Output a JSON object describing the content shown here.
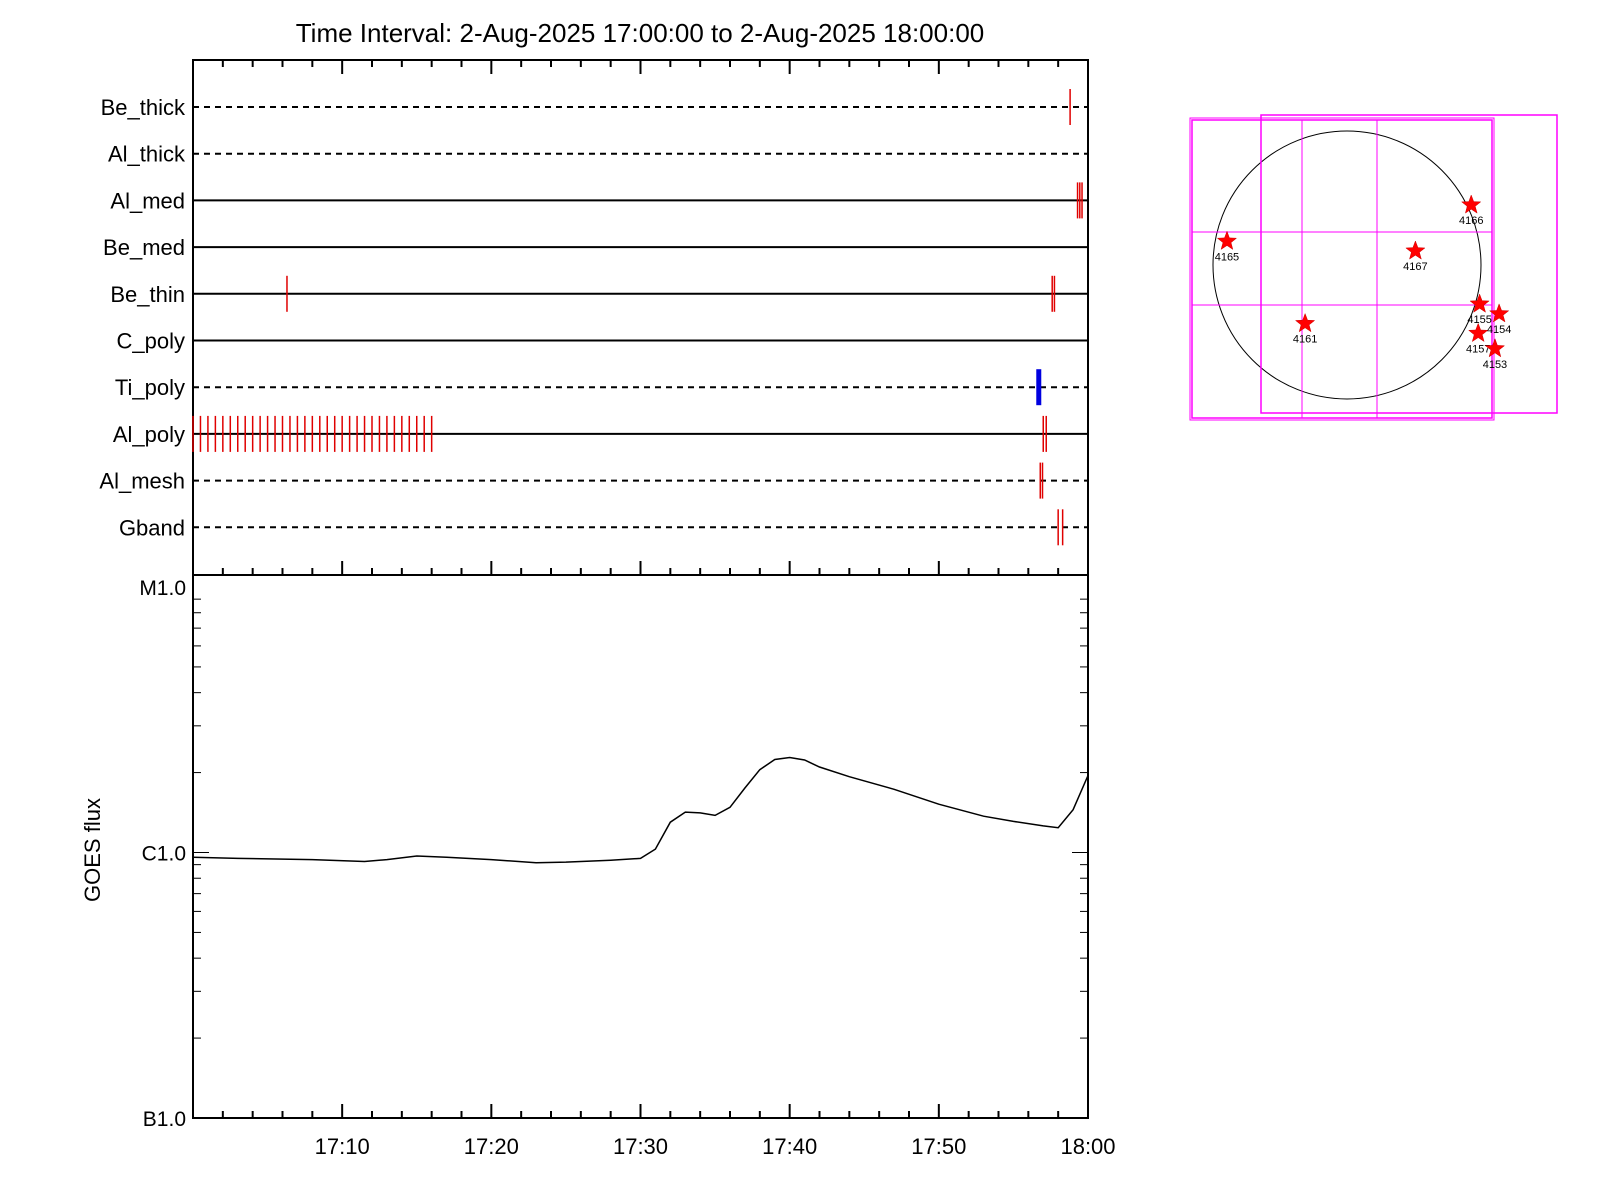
{
  "chart_data": [
    {
      "type": "timeline",
      "title": "Time Interval:  2-Aug-2025 17:00:00 to  2-Aug-2025 18:00:00",
      "x_range_minutes": [
        0,
        60
      ],
      "rows": [
        {
          "label": "Be_thick",
          "line": "dashed",
          "events": [
            {
              "t": [
                58.8
              ],
              "color": "#e00000"
            }
          ]
        },
        {
          "label": "Al_thick",
          "line": "dashed",
          "events": []
        },
        {
          "label": "Al_med",
          "line": "solid",
          "events": [
            {
              "t": [
                59.3,
                59.45,
                59.6
              ],
              "color": "#e00000"
            }
          ]
        },
        {
          "label": "Be_med",
          "line": "solid",
          "events": []
        },
        {
          "label": "Be_thin",
          "line": "solid",
          "events": [
            {
              "t": [
                6.3,
                57.6,
                57.75
              ],
              "color": "#e00000"
            }
          ]
        },
        {
          "label": "C_poly",
          "line": "solid",
          "events": []
        },
        {
          "label": "Ti_poly",
          "line": "dashed",
          "events": [
            {
              "t": [
                56.7
              ],
              "color": "#0000e0",
              "bold": true
            }
          ]
        },
        {
          "label": "Al_poly",
          "line": "solid",
          "events": [
            {
              "t_range": [
                0,
                16.2
              ],
              "step": 0.5,
              "color": "#e00000"
            },
            {
              "t": [
                57.0,
                57.2
              ],
              "color": "#e00000"
            }
          ]
        },
        {
          "label": "Al_mesh",
          "line": "dashed",
          "events": [
            {
              "t": [
                56.8,
                56.95
              ],
              "color": "#e00000"
            }
          ]
        },
        {
          "label": "Gband",
          "line": "dashed",
          "events": [
            {
              "t": [
                58.0,
                58.3
              ],
              "color": "#e00000"
            }
          ]
        }
      ]
    },
    {
      "type": "line",
      "ylabel": "GOES flux",
      "y_scale": "log",
      "y_ticks": [
        {
          "label": "M1.0",
          "value": 1e-05
        },
        {
          "label": "C1.0",
          "value": 1e-06
        },
        {
          "label": "B1.0",
          "value": 1e-07
        }
      ],
      "x_ticks": [
        "17:10",
        "17:20",
        "17:30",
        "17:40",
        "17:50",
        "18:00"
      ],
      "x_range_minutes": [
        0,
        60
      ],
      "series": [
        {
          "color": "#000000",
          "x_minutes": [
            0,
            3,
            8,
            11.5,
            13,
            15,
            17,
            20,
            23,
            25,
            28,
            30,
            31,
            32,
            33,
            34,
            35,
            36,
            37,
            38,
            39,
            40,
            41,
            42,
            44,
            47,
            50,
            53,
            55,
            57,
            58,
            59,
            60
          ],
          "y": [
            9.6e-07,
            9.5e-07,
            9.4e-07,
            9.25e-07,
            9.4e-07,
            9.7e-07,
            9.6e-07,
            9.4e-07,
            9.15e-07,
            9.2e-07,
            9.35e-07,
            9.5e-07,
            1.03e-06,
            1.3e-06,
            1.42e-06,
            1.41e-06,
            1.38e-06,
            1.48e-06,
            1.75e-06,
            2.05e-06,
            2.24e-06,
            2.28e-06,
            2.23e-06,
            2.1e-06,
            1.93e-06,
            1.73e-06,
            1.52e-06,
            1.37e-06,
            1.31e-06,
            1.26e-06,
            1.24e-06,
            1.45e-06,
            1.95e-06
          ]
        }
      ]
    },
    {
      "type": "map",
      "fov_color": "#ff00ff",
      "markers": [
        {
          "label": "4165",
          "x": -860,
          "y": 170
        },
        {
          "label": "4166",
          "x": 890,
          "y": 430
        },
        {
          "label": "4167",
          "x": 490,
          "y": 100
        },
        {
          "label": "4161",
          "x": -300,
          "y": -420
        },
        {
          "label": "4155",
          "x": 950,
          "y": -280
        },
        {
          "label": "4154",
          "x": 1090,
          "y": -350
        },
        {
          "label": "4157",
          "x": 940,
          "y": -490
        },
        {
          "label": "4153",
          "x": 1060,
          "y": -600
        }
      ]
    }
  ]
}
